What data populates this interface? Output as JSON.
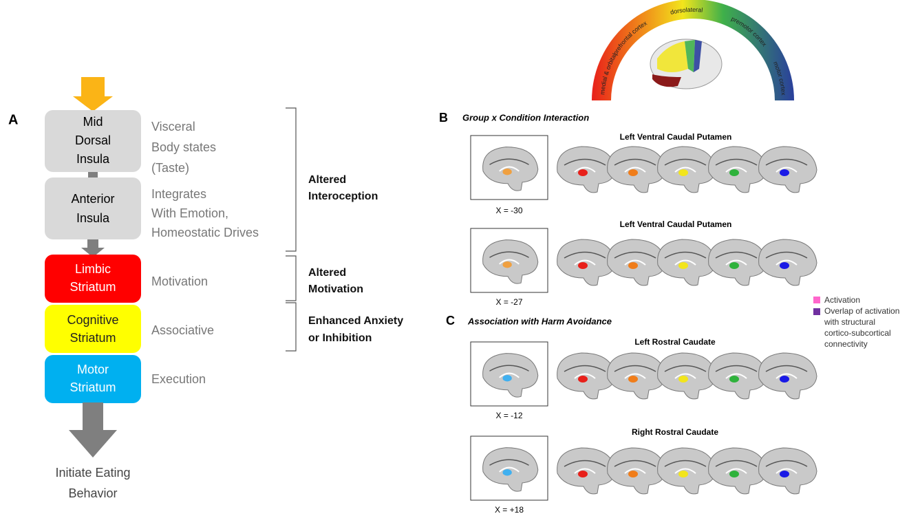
{
  "panel_a": {
    "label": "A",
    "boxes": [
      {
        "lines": [
          "Mid",
          "Dorsal",
          "Insula"
        ],
        "description": [
          "Visceral",
          "Body states",
          "(Taste)"
        ]
      },
      {
        "lines": [
          "Anterior",
          "Insula"
        ],
        "description": [
          "Integrates",
          "With Emotion,",
          "Homeostatic Drives"
        ]
      },
      {
        "lines": [
          "Limbic",
          "Striatum"
        ],
        "description": [
          "Motivation"
        ]
      },
      {
        "lines": [
          "Cognitive",
          "Striatum"
        ],
        "description": [
          "Associative"
        ]
      },
      {
        "lines": [
          "Motor",
          "Striatum"
        ],
        "description": [
          "Execution"
        ]
      }
    ],
    "outcome": [
      "Initiate Eating",
      "Behavior"
    ],
    "brackets": [
      [
        "Altered",
        "Interoception"
      ],
      [
        "Altered",
        "Motivation"
      ],
      [
        "Enhanced Anxiety",
        "or Inhibition"
      ]
    ]
  },
  "arc_labels": [
    "medial & orbital",
    "prefrontal cortex",
    "dorsolateral",
    "premotor cortex",
    "motor cortex"
  ],
  "panel_b": {
    "label": "B",
    "title": "Group x Condition Interaction",
    "rows": [
      {
        "title": "Left Ventral Caudal Putamen",
        "slice": "X = -30"
      },
      {
        "title": "Left Ventral Caudal Putamen",
        "slice": "X = -27"
      }
    ]
  },
  "panel_c": {
    "label": "C",
    "title": "Association with Harm Avoidance",
    "rows": [
      {
        "title": "Left Rostral Caudate",
        "slice": "X = -12"
      },
      {
        "title": "Right Rostral Caudate",
        "slice": "X = +18"
      }
    ]
  },
  "legend": [
    [
      "Activation"
    ],
    [
      "Overlap of activation",
      "with structural",
      "cortico-subcortical",
      "connectivity"
    ]
  ]
}
